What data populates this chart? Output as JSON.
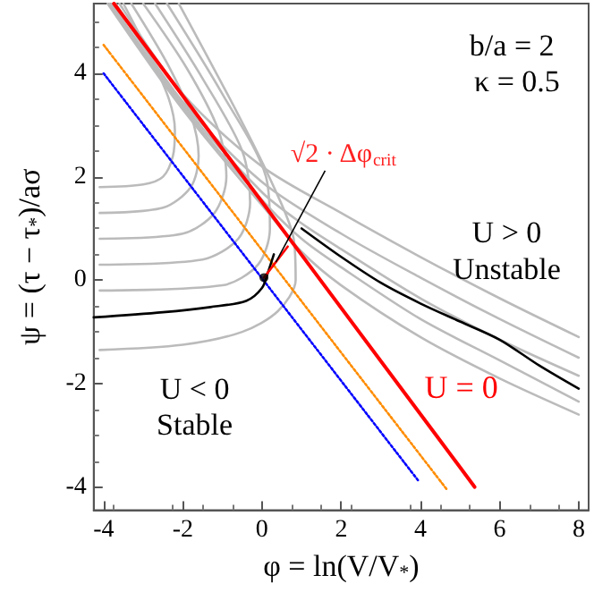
{
  "chart_data": {
    "type": "line",
    "xlabel": "φ = ln(V/V$_{*}$)",
    "ylabel": "ψ = (τ − τ$_{*}$)/aσ",
    "xlim": [
      -4.25,
      8.25
    ],
    "ylim": [
      -4.45,
      5.35
    ],
    "xticks": [
      -4,
      -2,
      0,
      2,
      4,
      6,
      8
    ],
    "yticks": [
      -4,
      -2,
      0,
      2,
      4
    ],
    "grid": false,
    "legend": false,
    "marker": "none",
    "annotations": [
      "b/a = 2",
      "κ = 0.5",
      "U > 0",
      "Unstable",
      "U < 0",
      "Stable",
      {
        "text": "√2 · Δφ$_{crit}$",
        "x": 0.35,
        "y": 0.35
      }
    ],
    "series": [
      {
        "color": "#bbbbbb",
        "line_style": "solid",
        "x": [
          -4.1,
          -3,
          -2.5,
          -2.25,
          -2.2,
          -2.35,
          -2.8,
          -3.5
        ],
        "values": [
          1.8,
          1.85,
          2.0,
          2.4,
          2.9,
          3.5,
          4.3,
          5.35
        ]
      },
      {
        "color": "#bbbbbb",
        "line_style": "solid",
        "x": [
          -4.1,
          -2.5,
          -1.8,
          -1.6,
          -1.8,
          -2.4,
          -3.3
        ],
        "values": [
          1.3,
          1.4,
          1.8,
          2.4,
          3.2,
          4.2,
          5.35
        ]
      },
      {
        "color": "#bbbbbb",
        "line_style": "solid",
        "x": [
          -4.1,
          -2,
          -1.2,
          -0.9,
          -1.1,
          -1.9,
          -3.0
        ],
        "values": [
          0.8,
          0.9,
          1.3,
          2.0,
          2.9,
          4.1,
          5.35
        ]
      },
      {
        "color": "#bbbbbb",
        "line_style": "solid",
        "x": [
          -4.1,
          -1.5,
          -0.6,
          -0.3,
          -0.5,
          -1.5,
          -2.7
        ],
        "values": [
          0.3,
          0.4,
          0.8,
          1.5,
          2.5,
          3.9,
          5.35
        ]
      },
      {
        "color": "#bbbbbb",
        "line_style": "solid",
        "x": [
          -4.1,
          -1,
          -0.1,
          0.2,
          0.1,
          -1.0,
          -2.4
        ],
        "values": [
          -0.2,
          -0.1,
          0.3,
          1.0,
          2.0,
          3.6,
          5.35
        ]
      },
      {
        "color": "#bbbbbb",
        "line_style": "solid",
        "x": [
          -4.1,
          -2,
          -0.5,
          0.4,
          0.85,
          0.8,
          0.3,
          -0.6,
          -2.1
        ],
        "values": [
          -1.35,
          -1.25,
          -1.0,
          -0.6,
          0,
          0.8,
          1.8,
          3.2,
          5.35
        ]
      },
      {
        "color": "#bbbbbb",
        "line_style": "solid",
        "x": [
          -3.6,
          -2,
          0,
          2,
          4,
          6,
          8
        ],
        "values": [
          5.35,
          3.6,
          2.2,
          1.3,
          0.45,
          -0.35,
          -1.1
        ]
      },
      {
        "color": "#bbbbbb",
        "line_style": "solid",
        "x": [
          -3.7,
          -2,
          0,
          2,
          4,
          6,
          8
        ],
        "values": [
          5.35,
          3.45,
          1.9,
          0.9,
          0.05,
          -0.75,
          -1.5
        ]
      },
      {
        "color": "#bbbbbb",
        "line_style": "solid",
        "x": [
          -3.8,
          -2,
          0,
          1,
          2,
          4,
          6,
          8
        ],
        "values": [
          5.35,
          3.4,
          1.7,
          1.1,
          0.6,
          -0.35,
          -1.15,
          -1.85
        ]
      },
      {
        "color": "#bbbbbb",
        "line_style": "solid",
        "x": [
          -3.85,
          -2,
          0,
          1,
          2,
          4,
          6,
          8
        ],
        "values": [
          5.35,
          3.35,
          1.55,
          0.8,
          0.25,
          -0.75,
          -1.55,
          -2.35
        ]
      },
      {
        "color": "#bbbbbb",
        "line_style": "solid",
        "x": [
          -3.9,
          -2,
          0,
          1,
          2,
          4,
          6,
          8
        ],
        "values": [
          5.35,
          3.3,
          1.45,
          0.55,
          -0.1,
          -1.1,
          -1.9,
          -2.6
        ]
      },
      {
        "color": "#0000ff",
        "line_style": "dotted",
        "x": [
          -4,
          3.97
        ],
        "values": [
          4.0,
          -3.9
        ]
      },
      {
        "color": "#ff8c00",
        "line_style": "dotted",
        "x": [
          -4,
          4.66
        ],
        "values": [
          4.55,
          -4.04
        ]
      },
      {
        "color": "#000000",
        "line_style": "solid",
        "x": [
          1,
          2,
          3,
          4,
          5,
          6,
          7,
          8
        ],
        "values": [
          1.0,
          0.45,
          -0.05,
          -0.45,
          -0.8,
          -1.15,
          -1.65,
          -2.1
        ]
      },
      {
        "color": "#000000",
        "line_style": "solid",
        "x": [
          0.3,
          0.15,
          0.0,
          -0.4,
          -1.3,
          -2.5,
          -4.25
        ],
        "values": [
          0.5,
          0.15,
          -0.15,
          -0.4,
          -0.52,
          -0.62,
          -0.72
        ]
      },
      {
        "name": "U = 0",
        "color": "#ff0000",
        "line_style": "solid",
        "x": [
          -3.74,
          4.4,
          5.37
        ],
        "values": [
          5.35,
          -3.0,
          -4.0
        ]
      },
      {
        "color": "#ff0000",
        "line_style": "solid",
        "x": [
          0.05,
          0.65
        ],
        "values": [
          0.05,
          0.65
        ]
      },
      {
        "type": "scatter",
        "marker": "circle",
        "color": "#000000",
        "x": [
          0.05
        ],
        "values": [
          0.05
        ]
      }
    ]
  }
}
